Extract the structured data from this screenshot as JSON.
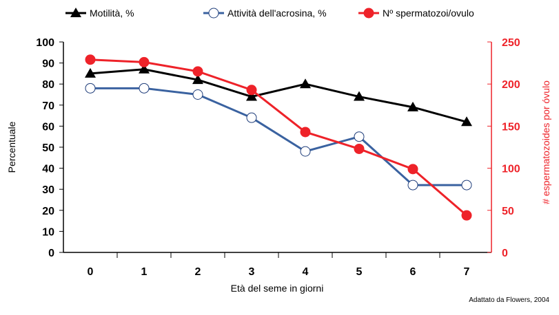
{
  "chart_data": {
    "type": "line",
    "title": "",
    "xlabel": "Età del seme in giorni",
    "ylabel": "Percentuale",
    "y2label": "# espermatozoides por óvulo",
    "x": [
      0,
      1,
      2,
      3,
      4,
      5,
      6,
      7
    ],
    "ylim": [
      0,
      100
    ],
    "yticks": [
      0,
      10,
      20,
      30,
      40,
      50,
      60,
      70,
      80,
      90,
      100
    ],
    "y2lim": [
      0,
      250
    ],
    "y2ticks": [
      0,
      50,
      100,
      150,
      200,
      250
    ],
    "grid": false,
    "legend_placement": "top",
    "series": [
      {
        "name": "Motilità, %",
        "axis": "left",
        "color": "#000000",
        "marker": "triangle",
        "values": [
          85,
          87,
          82,
          74,
          80,
          74,
          69,
          62
        ]
      },
      {
        "name": "Attività dell'acrosina, %",
        "axis": "left",
        "color": "#3a62a0",
        "marker": "open-circle",
        "values": [
          78,
          78,
          75,
          64,
          48,
          55,
          32,
          32
        ]
      },
      {
        "name": "Nº spermatozoi/ovulo",
        "axis": "right",
        "color": "#ee2229",
        "marker": "filled-circle",
        "values": [
          229,
          226,
          215,
          193,
          143,
          123,
          99,
          44
        ]
      }
    ],
    "annotation": "Adattato da Flowers, 2004"
  }
}
